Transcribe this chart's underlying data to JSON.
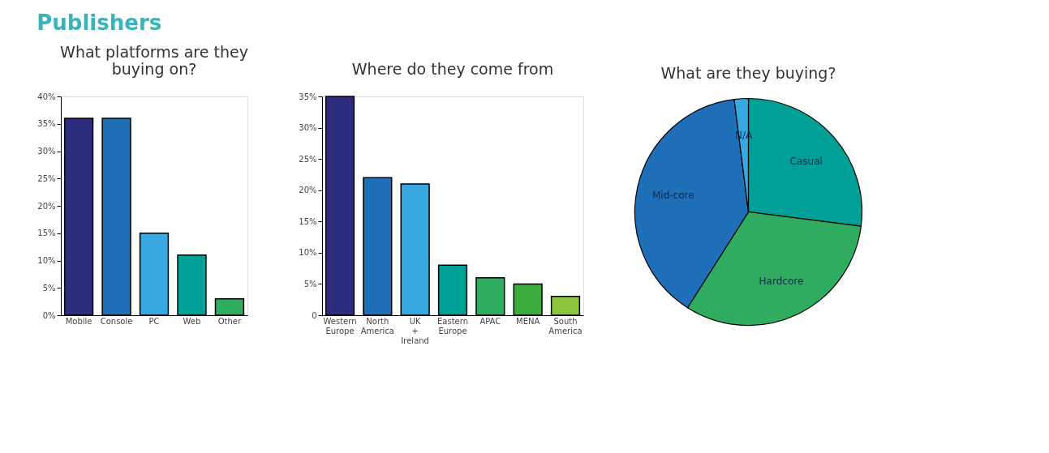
{
  "chart_data": [
    {
      "type": "bar",
      "title": "What platforms are they buying on?",
      "annotations": [
        "Publishers"
      ],
      "categories": [
        "Mobile",
        "Console",
        "PC",
        "Web",
        "Other"
      ],
      "values": [
        36,
        36,
        15,
        11,
        3
      ],
      "colors": [
        "#2e2c7e",
        "#1f6fb8",
        "#38a9e0",
        "#00a096",
        "#2fac5f"
      ],
      "ylim": [
        0,
        40
      ],
      "yticks": [
        {
          "value": 0,
          "label": "0%"
        },
        {
          "value": 5,
          "label": "5%"
        },
        {
          "value": 10,
          "label": "10%"
        },
        {
          "value": 15,
          "label": "15%"
        },
        {
          "value": 20,
          "label": "20%"
        },
        {
          "value": 25,
          "label": "25%"
        },
        {
          "value": 30,
          "label": "30%"
        },
        {
          "value": 35,
          "label": "35%"
        },
        {
          "value": 40,
          "label": "40%"
        }
      ],
      "grid": false,
      "legend": false
    },
    {
      "type": "bar",
      "title": "Where do they come from",
      "categories": [
        "Western Europe",
        "North America",
        "UK + Ireland",
        "Eastern Europe",
        "APAC",
        "MENA",
        "South America"
      ],
      "values": [
        35,
        22,
        21,
        8,
        6,
        5,
        3
      ],
      "colors": [
        "#2e2c7e",
        "#1f6fb8",
        "#38a9e0",
        "#00a096",
        "#2fac5f",
        "#3aab3c",
        "#8dc63f"
      ],
      "ylim": [
        0,
        35
      ],
      "yticks": [
        0,
        {
          "value": 5,
          "label": "5%"
        },
        {
          "value": 10,
          "label": "10%"
        },
        {
          "value": 15,
          "label": "15%"
        },
        {
          "value": 20,
          "label": "20%"
        },
        {
          "value": 25,
          "label": "25%"
        },
        {
          "value": 30,
          "label": "30%"
        },
        {
          "value": 35,
          "label": "35%"
        }
      ],
      "grid": false,
      "legend": false
    },
    {
      "type": "pie",
      "title": "What are they buying?",
      "categories": [
        "Casual",
        "Hardcore",
        "Mid-core",
        "N/A"
      ],
      "values": [
        27,
        32,
        39,
        2
      ],
      "colors": [
        "#00a096",
        "#2fac5f",
        "#1f6fb8",
        "#38a9e0"
      ],
      "legend": false
    }
  ]
}
